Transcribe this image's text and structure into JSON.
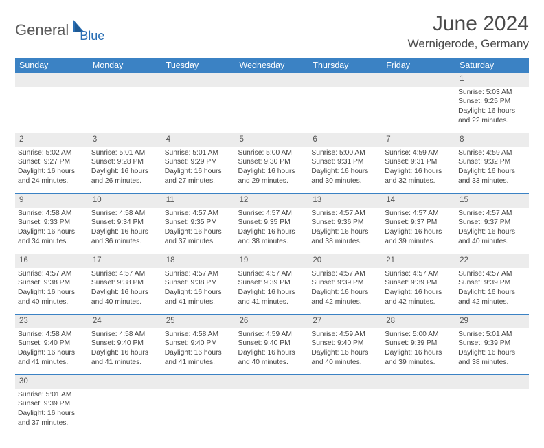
{
  "logo": {
    "part1": "General",
    "part2": "Blue"
  },
  "title": "June 2024",
  "location": "Wernigerode, Germany",
  "colors": {
    "header_bg": "#3b82c4",
    "header_fg": "#ffffff",
    "daynum_bg": "#ececec",
    "border": "#3b82c4",
    "logo_gray": "#5a5a5a",
    "logo_blue": "#2a6fb5"
  },
  "weekdays": [
    "Sunday",
    "Monday",
    "Tuesday",
    "Wednesday",
    "Thursday",
    "Friday",
    "Saturday"
  ],
  "weeks": [
    [
      null,
      null,
      null,
      null,
      null,
      null,
      {
        "n": "1",
        "sr": "Sunrise: 5:03 AM",
        "ss": "Sunset: 9:25 PM",
        "d1": "Daylight: 16 hours",
        "d2": "and 22 minutes."
      }
    ],
    [
      {
        "n": "2",
        "sr": "Sunrise: 5:02 AM",
        "ss": "Sunset: 9:27 PM",
        "d1": "Daylight: 16 hours",
        "d2": "and 24 minutes."
      },
      {
        "n": "3",
        "sr": "Sunrise: 5:01 AM",
        "ss": "Sunset: 9:28 PM",
        "d1": "Daylight: 16 hours",
        "d2": "and 26 minutes."
      },
      {
        "n": "4",
        "sr": "Sunrise: 5:01 AM",
        "ss": "Sunset: 9:29 PM",
        "d1": "Daylight: 16 hours",
        "d2": "and 27 minutes."
      },
      {
        "n": "5",
        "sr": "Sunrise: 5:00 AM",
        "ss": "Sunset: 9:30 PM",
        "d1": "Daylight: 16 hours",
        "d2": "and 29 minutes."
      },
      {
        "n": "6",
        "sr": "Sunrise: 5:00 AM",
        "ss": "Sunset: 9:31 PM",
        "d1": "Daylight: 16 hours",
        "d2": "and 30 minutes."
      },
      {
        "n": "7",
        "sr": "Sunrise: 4:59 AM",
        "ss": "Sunset: 9:31 PM",
        "d1": "Daylight: 16 hours",
        "d2": "and 32 minutes."
      },
      {
        "n": "8",
        "sr": "Sunrise: 4:59 AM",
        "ss": "Sunset: 9:32 PM",
        "d1": "Daylight: 16 hours",
        "d2": "and 33 minutes."
      }
    ],
    [
      {
        "n": "9",
        "sr": "Sunrise: 4:58 AM",
        "ss": "Sunset: 9:33 PM",
        "d1": "Daylight: 16 hours",
        "d2": "and 34 minutes."
      },
      {
        "n": "10",
        "sr": "Sunrise: 4:58 AM",
        "ss": "Sunset: 9:34 PM",
        "d1": "Daylight: 16 hours",
        "d2": "and 36 minutes."
      },
      {
        "n": "11",
        "sr": "Sunrise: 4:57 AM",
        "ss": "Sunset: 9:35 PM",
        "d1": "Daylight: 16 hours",
        "d2": "and 37 minutes."
      },
      {
        "n": "12",
        "sr": "Sunrise: 4:57 AM",
        "ss": "Sunset: 9:35 PM",
        "d1": "Daylight: 16 hours",
        "d2": "and 38 minutes."
      },
      {
        "n": "13",
        "sr": "Sunrise: 4:57 AM",
        "ss": "Sunset: 9:36 PM",
        "d1": "Daylight: 16 hours",
        "d2": "and 38 minutes."
      },
      {
        "n": "14",
        "sr": "Sunrise: 4:57 AM",
        "ss": "Sunset: 9:37 PM",
        "d1": "Daylight: 16 hours",
        "d2": "and 39 minutes."
      },
      {
        "n": "15",
        "sr": "Sunrise: 4:57 AM",
        "ss": "Sunset: 9:37 PM",
        "d1": "Daylight: 16 hours",
        "d2": "and 40 minutes."
      }
    ],
    [
      {
        "n": "16",
        "sr": "Sunrise: 4:57 AM",
        "ss": "Sunset: 9:38 PM",
        "d1": "Daylight: 16 hours",
        "d2": "and 40 minutes."
      },
      {
        "n": "17",
        "sr": "Sunrise: 4:57 AM",
        "ss": "Sunset: 9:38 PM",
        "d1": "Daylight: 16 hours",
        "d2": "and 40 minutes."
      },
      {
        "n": "18",
        "sr": "Sunrise: 4:57 AM",
        "ss": "Sunset: 9:38 PM",
        "d1": "Daylight: 16 hours",
        "d2": "and 41 minutes."
      },
      {
        "n": "19",
        "sr": "Sunrise: 4:57 AM",
        "ss": "Sunset: 9:39 PM",
        "d1": "Daylight: 16 hours",
        "d2": "and 41 minutes."
      },
      {
        "n": "20",
        "sr": "Sunrise: 4:57 AM",
        "ss": "Sunset: 9:39 PM",
        "d1": "Daylight: 16 hours",
        "d2": "and 42 minutes."
      },
      {
        "n": "21",
        "sr": "Sunrise: 4:57 AM",
        "ss": "Sunset: 9:39 PM",
        "d1": "Daylight: 16 hours",
        "d2": "and 42 minutes."
      },
      {
        "n": "22",
        "sr": "Sunrise: 4:57 AM",
        "ss": "Sunset: 9:39 PM",
        "d1": "Daylight: 16 hours",
        "d2": "and 42 minutes."
      }
    ],
    [
      {
        "n": "23",
        "sr": "Sunrise: 4:58 AM",
        "ss": "Sunset: 9:40 PM",
        "d1": "Daylight: 16 hours",
        "d2": "and 41 minutes."
      },
      {
        "n": "24",
        "sr": "Sunrise: 4:58 AM",
        "ss": "Sunset: 9:40 PM",
        "d1": "Daylight: 16 hours",
        "d2": "and 41 minutes."
      },
      {
        "n": "25",
        "sr": "Sunrise: 4:58 AM",
        "ss": "Sunset: 9:40 PM",
        "d1": "Daylight: 16 hours",
        "d2": "and 41 minutes."
      },
      {
        "n": "26",
        "sr": "Sunrise: 4:59 AM",
        "ss": "Sunset: 9:40 PM",
        "d1": "Daylight: 16 hours",
        "d2": "and 40 minutes."
      },
      {
        "n": "27",
        "sr": "Sunrise: 4:59 AM",
        "ss": "Sunset: 9:40 PM",
        "d1": "Daylight: 16 hours",
        "d2": "and 40 minutes."
      },
      {
        "n": "28",
        "sr": "Sunrise: 5:00 AM",
        "ss": "Sunset: 9:39 PM",
        "d1": "Daylight: 16 hours",
        "d2": "and 39 minutes."
      },
      {
        "n": "29",
        "sr": "Sunrise: 5:01 AM",
        "ss": "Sunset: 9:39 PM",
        "d1": "Daylight: 16 hours",
        "d2": "and 38 minutes."
      }
    ],
    [
      {
        "n": "30",
        "sr": "Sunrise: 5:01 AM",
        "ss": "Sunset: 9:39 PM",
        "d1": "Daylight: 16 hours",
        "d2": "and 37 minutes."
      },
      null,
      null,
      null,
      null,
      null,
      null
    ]
  ]
}
